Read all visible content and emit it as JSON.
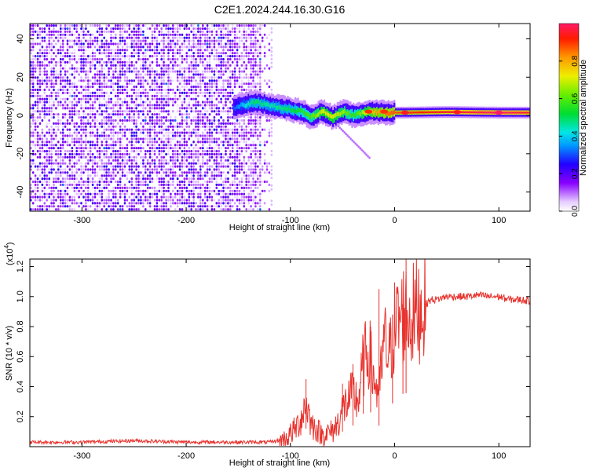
{
  "figure": {
    "title": "C2E1.2024.244.16.30.G16"
  },
  "chart_data": [
    {
      "type": "heatmap",
      "title": "C2E1.2024.244.16.30.G16",
      "xlabel": "Height of straight line (km)",
      "ylabel": "Frequency (Hz)",
      "xlim": [
        -350,
        130
      ],
      "ylim": [
        -50,
        48
      ],
      "x_ticks": [
        -300,
        -200,
        -100,
        0,
        100
      ],
      "y_ticks": [
        -40,
        -20,
        0,
        20,
        40
      ],
      "colorbar": {
        "label": "Normalized spectral amplitude",
        "range": [
          0.0,
          1.0
        ],
        "ticks": [
          0.0,
          0.2,
          0.4,
          0.6,
          0.8
        ],
        "colormap": "rainbow (white/lavender → violet → blue → cyan → green → yellow → orange → red)"
      },
      "description_points": {
        "noise_region_x": [
          -350,
          -120
        ],
        "signal_trace": [
          {
            "x": -155,
            "y": 4,
            "amp": 0.3
          },
          {
            "x": -135,
            "y": 7,
            "amp": 0.5
          },
          {
            "x": -120,
            "y": 5,
            "amp": 0.45
          },
          {
            "x": -100,
            "y": 3,
            "amp": 0.5
          },
          {
            "x": -90,
            "y": 2,
            "amp": 0.55
          },
          {
            "x": -80,
            "y": -1,
            "amp": 0.6
          },
          {
            "x": -70,
            "y": 2,
            "amp": 0.7
          },
          {
            "x": -60,
            "y": -1,
            "amp": 0.7
          },
          {
            "x": -50,
            "y": 2,
            "amp": 0.65
          },
          {
            "x": -40,
            "y": 0,
            "amp": 0.55
          },
          {
            "x": -25,
            "y": 2,
            "amp": 0.75
          },
          {
            "x": -10,
            "y": 1.5,
            "amp": 0.85
          },
          {
            "x": 10,
            "y": 1.5,
            "amp": 0.9
          },
          {
            "x": 50,
            "y": 1.8,
            "amp": 0.95
          },
          {
            "x": 100,
            "y": 1.5,
            "amp": 1.0
          },
          {
            "x": 130,
            "y": 1.5,
            "amp": 0.95
          }
        ]
      }
    },
    {
      "type": "line",
      "xlabel": "Height of straight line (km)",
      "ylabel": "SNR (10 * v/v)",
      "y_multiplier": "(x10",
      "y_multiplier_exp": "4",
      "y_multiplier_close": ")",
      "xlim": [
        -350,
        130
      ],
      "ylim": [
        0.0,
        1.25
      ],
      "x_ticks": [
        -300,
        -200,
        -100,
        0,
        100
      ],
      "y_ticks": [
        0.2,
        0.4,
        0.6,
        0.8,
        1.0,
        1.2
      ],
      "series": [
        {
          "color": "#e8322d",
          "x": [
            -350,
            -300,
            -250,
            -200,
            -150,
            -120,
            -105,
            -95,
            -90,
            -85,
            -80,
            -75,
            -70,
            -60,
            -55,
            -50,
            -45,
            -40,
            -35,
            -30,
            -25,
            -20,
            -15,
            -10,
            -5,
            0,
            5,
            10,
            15,
            20,
            25,
            30,
            35,
            40,
            50,
            60,
            70,
            80,
            90,
            100,
            110,
            120,
            130
          ],
          "y": [
            0.03,
            0.03,
            0.04,
            0.03,
            0.03,
            0.03,
            0.05,
            0.12,
            0.18,
            0.3,
            0.15,
            0.12,
            0.08,
            0.1,
            0.15,
            0.25,
            0.3,
            0.35,
            0.3,
            0.55,
            0.65,
            0.45,
            0.35,
            0.7,
            0.6,
            0.8,
            0.85,
            0.9,
            0.85,
            0.9,
            0.92,
            0.95,
            0.98,
            0.98,
            1.0,
            1.0,
            1.0,
            1.01,
            1.0,
            1.0,
            0.98,
            0.98,
            0.97
          ]
        }
      ],
      "spikes": [
        {
          "x": -85,
          "y": 0.45
        },
        {
          "x": -50,
          "y": 0.42
        },
        {
          "x": -40,
          "y": 0.55
        },
        {
          "x": -30,
          "y": 0.65
        },
        {
          "x": -23,
          "y": 0.8
        },
        {
          "x": -15,
          "y": 1.05
        },
        {
          "x": -2,
          "y": 0.88
        },
        {
          "x": 8,
          "y": 0.95
        },
        {
          "x": 11,
          "y": 1.25
        }
      ]
    }
  ]
}
